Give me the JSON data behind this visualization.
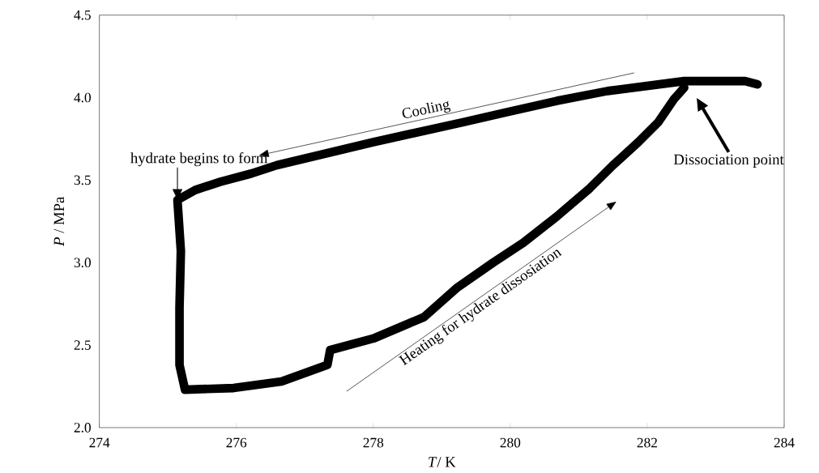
{
  "chart_data": {
    "type": "line",
    "xlabel": "*T*/ K",
    "ylabel": "*P* / MPa",
    "xlim": [
      274,
      284
    ],
    "xticks": [
      274,
      276,
      278,
      280,
      282,
      284
    ],
    "ylim": [
      2.0,
      4.5
    ],
    "yticks": [
      {
        "value": 2.0,
        "label": "2.0"
      },
      {
        "value": 2.5,
        "label": "2.5"
      },
      {
        "value": 3.0,
        "label": "3.0"
      },
      {
        "value": 3.5,
        "label": "3.5"
      },
      {
        "value": 4.0,
        "label": "4.0"
      },
      {
        "value": 4.5,
        "label": "4.5"
      }
    ],
    "series": [
      {
        "color": "#000000",
        "x": [
          283.61,
          283.43,
          282.54,
          281.42,
          280.68,
          279.93,
          279.3,
          278.0,
          276.59,
          276.22,
          275.77,
          275.4,
          275.14,
          275.19,
          275.17,
          275.17,
          275.25,
          275.96,
          276.66,
          277.33,
          277.37,
          278.0,
          278.74,
          279.23,
          279.75,
          280.19,
          280.68,
          281.16,
          281.5,
          281.87,
          282.16,
          282.39,
          282.54
        ],
        "values": [
          4.08,
          4.1,
          4.1,
          4.04,
          3.98,
          3.91,
          3.85,
          3.73,
          3.59,
          3.54,
          3.49,
          3.44,
          3.38,
          3.07,
          2.73,
          2.38,
          2.23,
          2.24,
          2.28,
          2.38,
          2.47,
          2.54,
          2.67,
          2.85,
          3.0,
          3.12,
          3.28,
          3.45,
          3.59,
          3.73,
          3.85,
          3.99,
          4.06
        ]
      }
    ],
    "annotations": [
      {
        "text": "hydrate begins to form",
        "x": 275.14,
        "y": 3.38
      },
      "Dissociation point",
      "Cooling",
      "Heating for hydrate dissosiation"
    ]
  }
}
